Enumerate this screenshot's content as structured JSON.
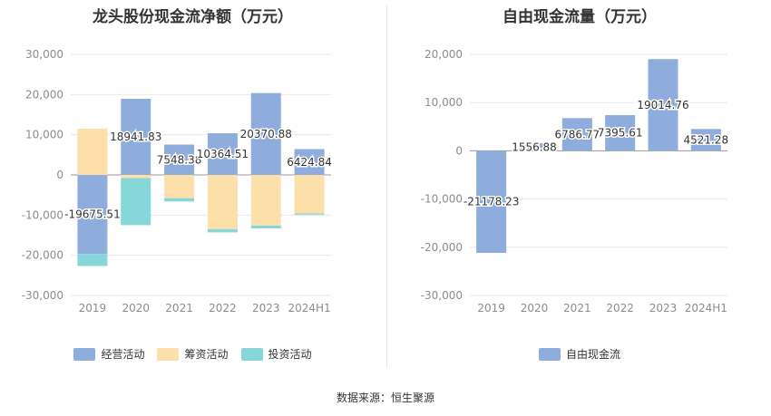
{
  "footer": {
    "source": "数据来源：恒生聚源"
  },
  "chart_data": [
    {
      "type": "bar",
      "stacked": true,
      "title": "龙头股份现金流净额（万元）",
      "categories": [
        "2019",
        "2020",
        "2021",
        "2022",
        "2023",
        "2024H1"
      ],
      "ylim": [
        -30000,
        30000
      ],
      "yticks": [
        30000,
        20000,
        10000,
        0,
        -10000,
        -20000,
        -30000
      ],
      "ytick_labels": [
        "30,000",
        "20,000",
        "10,000",
        "0",
        "-10,000",
        "-20,000",
        "-30,000"
      ],
      "grid": true,
      "legend_position": "bottom",
      "series": [
        {
          "name": "经营活动",
          "color": "#8eaddc",
          "values": [
            -19675.51,
            18941.83,
            7548.38,
            10364.51,
            20370.88,
            6424.84
          ]
        },
        {
          "name": "筹资活动",
          "color": "#fddfaa",
          "values": [
            11500,
            -800,
            -5800,
            -13500,
            -12600,
            -9600
          ]
        },
        {
          "name": "投资活动",
          "color": "#87d6d9",
          "values": [
            -3000,
            -11700,
            -800,
            -800,
            -700,
            -300
          ]
        }
      ],
      "data_labels": [
        "-19675.51",
        "18941.83",
        "7548.38",
        "10364.51",
        "20370.88",
        "6424.84"
      ]
    },
    {
      "type": "bar",
      "title": "自由现金流量（万元）",
      "categories": [
        "2019",
        "2020",
        "2021",
        "2022",
        "2023",
        "2024H1"
      ],
      "ylim": [
        -30000,
        20000
      ],
      "yticks": [
        20000,
        10000,
        0,
        -10000,
        -20000,
        -30000
      ],
      "ytick_labels": [
        "20,000",
        "10,000",
        "0",
        "-10,000",
        "-20,000",
        "-30,000"
      ],
      "grid": true,
      "legend_position": "bottom",
      "series": [
        {
          "name": "自由现金流",
          "color": "#8eaddc",
          "values": [
            -21178.23,
            1556.88,
            6786.77,
            7395.61,
            19014.76,
            4521.28
          ]
        }
      ],
      "data_labels": [
        "-21178.23",
        "1556.88",
        "6786.77",
        "7395.61",
        "19014.76",
        "4521.28"
      ]
    }
  ]
}
